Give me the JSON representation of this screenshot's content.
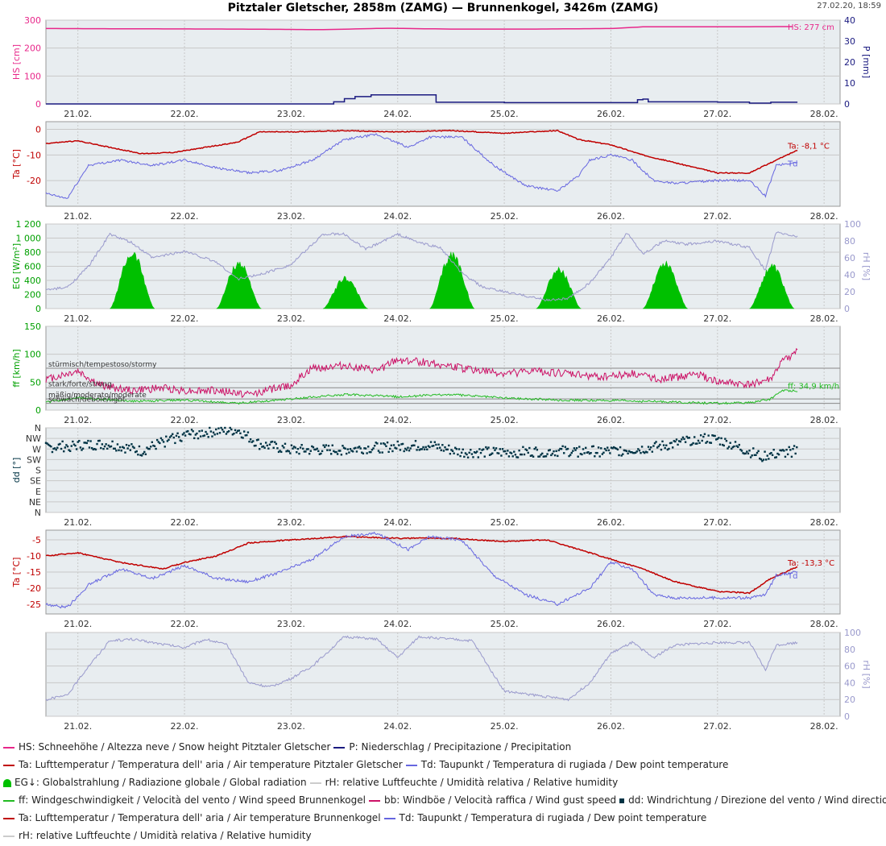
{
  "header": {
    "title": "Pitztaler Gletscher, 2858m (ZAMG) — Brunnenkogel, 3426m (ZAMG)",
    "timestamp": "27.02.20, 18:59"
  },
  "colors": {
    "hs": "#e8278a",
    "precip": "#1a1a80",
    "ta": "#c00000",
    "td": "#6666e0",
    "eg": "#00c000",
    "rh": "#9999cc",
    "ff": "#22bb22",
    "bb": "#cc1166",
    "dd": "#003344",
    "grid": "#c8c8c8",
    "plotbg": "#e8edf0"
  },
  "chart_data": [
    {
      "id": "snow_precip",
      "type": "line",
      "ylabel": "HS [cm]",
      "ylabel_right": "P [mm]",
      "ylim": [
        0,
        300
      ],
      "yticks": [
        0,
        100,
        200,
        300
      ],
      "ylim_right": [
        0,
        40
      ],
      "yticks_right": [
        0,
        10,
        20,
        30,
        40
      ],
      "x_range": [
        20.7,
        28.15
      ],
      "xticks": [
        "21.02.",
        "22.02.",
        "23.02.",
        "24.02.",
        "25.02.",
        "26.02.",
        "27.02.",
        "28.02."
      ],
      "series": [
        {
          "name": "HS",
          "axis": "left",
          "color": "#e8278a",
          "x": [
            20.7,
            21.5,
            22.5,
            23.3,
            23.9,
            24.5,
            25.3,
            26.0,
            26.3,
            27.0,
            27.7
          ],
          "y": [
            270,
            269,
            268,
            266,
            271,
            268,
            268,
            270,
            276,
            276,
            277
          ]
        },
        {
          "name": "P",
          "axis": "right",
          "color": "#1a1a80",
          "step": true,
          "x": [
            20.7,
            23.25,
            23.4,
            23.5,
            23.6,
            23.75,
            24.0,
            24.35,
            24.36,
            25.0,
            26.2,
            26.25,
            26.3,
            26.35,
            26.6,
            27.0,
            27.3,
            27.5,
            27.75
          ],
          "y": [
            0,
            0,
            1.0,
            2.5,
            3.5,
            4.3,
            4.3,
            4.3,
            0.8,
            0.6,
            0.6,
            2.0,
            2.3,
            1.0,
            1.0,
            0.9,
            0.4,
            0.8,
            0.8
          ]
        }
      ],
      "annotations": [
        {
          "text": "HS: 277 cm",
          "color": "#e8278a"
        }
      ]
    },
    {
      "id": "temp_pitztal",
      "type": "line",
      "ylabel": "Ta [°C]",
      "ylim": [
        -30,
        3
      ],
      "yticks": [
        -20,
        -10,
        0
      ],
      "x_range": [
        20.7,
        28.15
      ],
      "xticks": [
        "21.02.",
        "22.02.",
        "23.02.",
        "24.02.",
        "25.02.",
        "26.02.",
        "27.02.",
        "28.02."
      ],
      "series": [
        {
          "name": "Ta",
          "color": "#c00000",
          "x": [
            20.7,
            21.0,
            21.3,
            21.6,
            21.9,
            22.2,
            22.5,
            22.7,
            23.0,
            23.5,
            24.0,
            24.5,
            25.0,
            25.5,
            25.7,
            26.0,
            26.3,
            26.6,
            27.0,
            27.3,
            27.5,
            27.75
          ],
          "y": [
            -5.5,
            -4.5,
            -7,
            -9.5,
            -9,
            -7,
            -5,
            -1,
            -1,
            -0.5,
            -1,
            -0.5,
            -1.5,
            -0.5,
            -4,
            -6,
            -10,
            -13,
            -17,
            -17,
            -13,
            -8.1
          ]
        },
        {
          "name": "Td",
          "color": "#6666e0",
          "x": [
            20.7,
            20.9,
            21.1,
            21.4,
            21.7,
            22.0,
            22.3,
            22.6,
            22.9,
            23.2,
            23.5,
            23.8,
            24.1,
            24.3,
            24.6,
            24.9,
            25.2,
            25.5,
            25.7,
            25.8,
            26.0,
            26.2,
            26.4,
            26.6,
            27.0,
            27.3,
            27.45,
            27.55,
            27.75
          ],
          "y": [
            -25,
            -27,
            -14,
            -12,
            -14,
            -12,
            -15,
            -17,
            -16,
            -12,
            -4,
            -2,
            -7,
            -3,
            -3,
            -14,
            -22,
            -24,
            -18,
            -12,
            -10,
            -12,
            -20,
            -21,
            -20,
            -20,
            -26,
            -14,
            -13
          ]
        }
      ],
      "annotations": [
        {
          "text": "Ta: -8,1 °C",
          "color": "#c00000"
        },
        {
          "text": "Td",
          "color": "#6666e0"
        }
      ]
    },
    {
      "id": "radiation_rh",
      "type": "area",
      "ylabel": "EG [W/m²]",
      "ylabel_right": "rH [%]",
      "ylim": [
        0,
        1200
      ],
      "yticks": [
        0,
        200,
        400,
        600,
        800,
        1000,
        1200
      ],
      "ytick_labels": [
        "0",
        "200",
        "400",
        "600",
        "800",
        "1 000",
        "1 200"
      ],
      "ylim_right": [
        0,
        100
      ],
      "yticks_right": [
        0,
        20,
        40,
        60,
        80,
        100
      ],
      "x_range": [
        20.7,
        28.15
      ],
      "xticks": [
        "21.02.",
        "22.02.",
        "23.02.",
        "24.02.",
        "25.02.",
        "26.02.",
        "27.02.",
        "28.02."
      ],
      "series": [
        {
          "name": "EG",
          "axis": "left",
          "color": "#00c000",
          "days": [
            21,
            22,
            23,
            24,
            25,
            26,
            27
          ],
          "peaks": [
            850,
            700,
            470,
            830,
            600,
            700,
            640
          ]
        },
        {
          "name": "rH",
          "axis": "right",
          "color": "#9999cc",
          "x": [
            20.7,
            20.9,
            21.1,
            21.3,
            21.5,
            21.7,
            22.0,
            22.3,
            22.5,
            22.7,
            23.0,
            23.3,
            23.5,
            23.7,
            24.0,
            24.2,
            24.4,
            24.6,
            24.8,
            25.0,
            25.2,
            25.4,
            25.6,
            25.8,
            26.0,
            26.15,
            26.3,
            26.5,
            26.7,
            27.0,
            27.3,
            27.45,
            27.55,
            27.75
          ],
          "y": [
            22,
            25,
            50,
            88,
            78,
            60,
            68,
            55,
            35,
            40,
            52,
            88,
            88,
            70,
            88,
            78,
            72,
            42,
            25,
            20,
            15,
            10,
            12,
            30,
            60,
            90,
            65,
            80,
            76,
            80,
            72,
            45,
            90,
            85
          ]
        }
      ]
    },
    {
      "id": "wind_speed",
      "type": "line",
      "ylabel": "ff [km/h]",
      "ylim": [
        0,
        150
      ],
      "yticks": [
        0,
        50,
        100,
        150
      ],
      "x_range": [
        20.7,
        28.15
      ],
      "xticks": [
        "21.02.",
        "22.02.",
        "23.02.",
        "24.02.",
        "25.02.",
        "26.02.",
        "27.02.",
        "28.02."
      ],
      "thresholds": [
        {
          "value": 75,
          "label": "stürmisch/tempestoso/stormy"
        },
        {
          "value": 40,
          "label": "stark/forte/strong"
        },
        {
          "value": 20,
          "label": "mäßig/moderato/moderate"
        },
        {
          "value": 12,
          "label": "schwach/debole/light"
        }
      ],
      "series": [
        {
          "name": "bb",
          "color": "#cc1166",
          "x": [
            20.7,
            21.0,
            21.2,
            21.5,
            21.8,
            22.0,
            22.3,
            22.6,
            23.0,
            23.2,
            23.5,
            23.8,
            24.0,
            24.3,
            24.6,
            25.0,
            25.3,
            25.6,
            25.9,
            26.2,
            26.5,
            26.8,
            27.0,
            27.3,
            27.5,
            27.6,
            27.75
          ],
          "y": [
            55,
            70,
            45,
            35,
            40,
            35,
            35,
            28,
            45,
            75,
            80,
            70,
            90,
            85,
            75,
            65,
            70,
            65,
            60,
            65,
            55,
            65,
            50,
            45,
            55,
            85,
            105
          ]
        },
        {
          "name": "ff",
          "color": "#22bb22",
          "x": [
            20.7,
            21.0,
            21.5,
            22.0,
            22.5,
            23.0,
            23.5,
            24.0,
            24.5,
            25.0,
            25.5,
            26.0,
            26.5,
            27.0,
            27.3,
            27.5,
            27.6,
            27.75
          ],
          "y": [
            14,
            22,
            16,
            18,
            12,
            20,
            28,
            24,
            28,
            22,
            18,
            17,
            15,
            12,
            13,
            20,
            35,
            34.9
          ]
        }
      ],
      "annotations": [
        {
          "text": "ff: 34,9 km/h",
          "color": "#22bb22"
        }
      ]
    },
    {
      "id": "wind_dir",
      "type": "scatter",
      "ylabel": "dd [°]",
      "ylim": [
        0,
        360
      ],
      "yticks": [
        0,
        45,
        90,
        135,
        180,
        225,
        270,
        315,
        360
      ],
      "ytick_labels": [
        "N",
        "NE",
        "E",
        "SE",
        "S",
        "SW",
        "W",
        "NW",
        "N"
      ],
      "x_range": [
        20.7,
        28.15
      ],
      "xticks": [
        "21.02.",
        "22.02.",
        "23.02.",
        "24.02.",
        "25.02.",
        "26.02.",
        "27.02.",
        "28.02."
      ],
      "series": [
        {
          "name": "dd",
          "color": "#003344",
          "x": [
            20.7,
            21.0,
            21.3,
            21.6,
            21.8,
            22.0,
            22.3,
            22.5,
            22.7,
            23.0,
            23.3,
            23.6,
            24.0,
            24.3,
            24.6,
            25.0,
            25.5,
            26.0,
            26.3,
            26.6,
            26.8,
            27.0,
            27.2,
            27.4,
            27.6,
            27.75
          ],
          "y": [
            275,
            285,
            290,
            260,
            300,
            330,
            345,
            350,
            290,
            265,
            265,
            270,
            280,
            285,
            255,
            255,
            260,
            260,
            270,
            290,
            315,
            310,
            275,
            240,
            250,
            265
          ]
        }
      ]
    },
    {
      "id": "temp_brunnenkogel",
      "type": "line",
      "ylabel": "Ta [°C]",
      "ylim": [
        -28,
        -2
      ],
      "yticks": [
        -25,
        -20,
        -15,
        -10,
        -5
      ],
      "x_range": [
        20.7,
        28.15
      ],
      "xticks": [
        "21.02.",
        "22.02.",
        "23.02.",
        "24.02.",
        "25.02.",
        "26.02.",
        "27.02.",
        "28.02."
      ],
      "series": [
        {
          "name": "Ta",
          "color": "#c00000",
          "x": [
            20.7,
            21.0,
            21.4,
            21.8,
            22.0,
            22.3,
            22.6,
            23.0,
            23.5,
            24.0,
            24.5,
            25.0,
            25.4,
            25.7,
            26.0,
            26.3,
            26.6,
            27.0,
            27.3,
            27.5,
            27.75
          ],
          "y": [
            -10,
            -9,
            -12,
            -14,
            -12,
            -10,
            -6,
            -5,
            -4,
            -4.5,
            -4.5,
            -5.5,
            -5,
            -8,
            -11,
            -14,
            -18,
            -21,
            -21.5,
            -17,
            -13.3
          ]
        },
        {
          "name": "Td",
          "color": "#6666e0",
          "x": [
            20.7,
            20.9,
            21.1,
            21.4,
            21.7,
            22.0,
            22.3,
            22.6,
            22.9,
            23.2,
            23.5,
            23.8,
            24.1,
            24.3,
            24.6,
            24.9,
            25.2,
            25.5,
            25.8,
            26.0,
            26.2,
            26.4,
            26.6,
            27.0,
            27.3,
            27.45,
            27.55,
            27.75
          ],
          "y": [
            -25,
            -26,
            -19,
            -14,
            -17,
            -13,
            -17,
            -18,
            -15,
            -11,
            -4,
            -3,
            -8,
            -4,
            -5,
            -16,
            -22,
            -25,
            -20,
            -12,
            -14,
            -22,
            -23,
            -23,
            -23,
            -22,
            -16,
            -15
          ]
        }
      ],
      "annotations": [
        {
          "text": "Ta: -13,3 °C",
          "color": "#c00000"
        },
        {
          "text": "Td",
          "color": "#6666e0"
        }
      ]
    },
    {
      "id": "rh_brunnenkogel",
      "type": "line",
      "ylabel_right": "rH [%]",
      "ylim_right": [
        0,
        100
      ],
      "yticks_right": [
        0,
        20,
        40,
        60,
        80,
        100
      ],
      "x_range": [
        20.7,
        28.15
      ],
      "xticks": [
        "21.02.",
        "22.02.",
        "23.02.",
        "24.02.",
        "25.02.",
        "26.02.",
        "27.02.",
        "28.02."
      ],
      "series": [
        {
          "name": "rH",
          "axis": "right",
          "color": "#9999cc",
          "x": [
            20.7,
            20.9,
            21.1,
            21.3,
            21.5,
            21.7,
            22.0,
            22.2,
            22.4,
            22.6,
            22.8,
            23.0,
            23.2,
            23.5,
            23.8,
            24.0,
            24.2,
            24.5,
            24.7,
            24.9,
            25.0,
            25.3,
            25.6,
            25.8,
            26.0,
            26.2,
            26.4,
            26.6,
            27.0,
            27.3,
            27.45,
            27.55,
            27.75
          ],
          "y": [
            20,
            25,
            60,
            90,
            92,
            88,
            82,
            92,
            85,
            40,
            35,
            45,
            60,
            95,
            92,
            70,
            95,
            92,
            90,
            50,
            30,
            25,
            20,
            40,
            75,
            88,
            70,
            85,
            88,
            88,
            55,
            85,
            88
          ]
        }
      ]
    }
  ],
  "legend": [
    [
      {
        "swatch": "line",
        "color": "#e8278a",
        "label": "HS: Schneehöhe / Altezza neve / Snow height  Pitztaler Gletscher"
      },
      {
        "swatch": "line",
        "color": "#1a1a80",
        "label": "P: Niederschlag / Precipitazione / Precipitation"
      }
    ],
    [
      {
        "swatch": "line",
        "color": "#c00000",
        "label": "Ta: Lufttemperatur / Temperatura dell' aria / Air temperature  Pitztaler Gletscher"
      },
      {
        "swatch": "line",
        "color": "#6666e0",
        "label": "Td: Taupunkt / Temperatura di rugiada / Dew point temperature"
      }
    ],
    [
      {
        "swatch": "area",
        "color": "#00c000",
        "label": "EG↓: Globalstrahlung / Radiazione globale / Global radiation"
      },
      {
        "swatch": "line",
        "color": "#cccccc",
        "label": "rH: relative Luftfeuchte / Umidità relativa / Relative humidity"
      }
    ],
    [
      {
        "swatch": "line",
        "color": "#22bb22",
        "label": "ff: Windgeschwindigkeit / Velocità del vento / Wind speed  Brunnenkogel"
      },
      {
        "swatch": "line",
        "color": "#cc1166",
        "label": "bb: Windböe / Velocità raffica / Wind gust speed"
      },
      {
        "swatch": "dot",
        "color": "#003344",
        "label": "dd: Windrichtung / Direzione del vento / Wind direction"
      }
    ],
    [
      {
        "swatch": "line",
        "color": "#c00000",
        "label": "Ta: Lufttemperatur / Temperatura dell' aria / Air temperature  Brunnenkogel"
      },
      {
        "swatch": "line",
        "color": "#6666e0",
        "label": "Td: Taupunkt / Temperatura di rugiada / Dew point temperature"
      }
    ],
    [
      {
        "swatch": "line",
        "color": "#cccccc",
        "label": "rH: relative Luftfeuchte / Umidità relativa / Relative humidity"
      }
    ]
  ]
}
